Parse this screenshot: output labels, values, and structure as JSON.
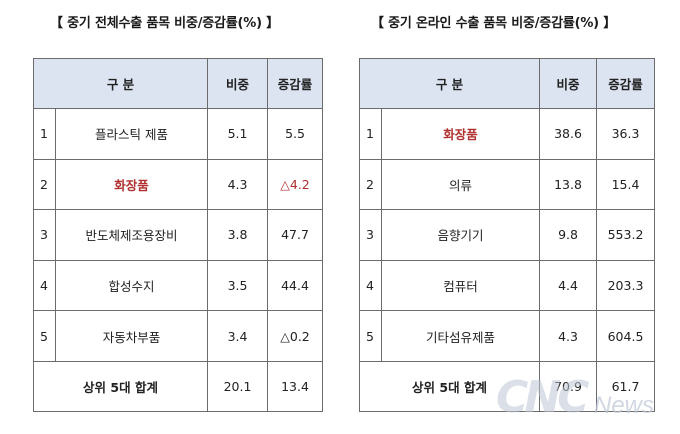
{
  "left": {
    "title": "【 중기 전체수출 품목 비중/증감률(%) 】",
    "headers": [
      "구  분",
      "비중",
      "증감률"
    ],
    "rows": [
      {
        "no": "1",
        "item": "플라스틱 제품",
        "share": "5.1",
        "change": "5.5",
        "highlight_item": false,
        "highlight_change": false
      },
      {
        "no": "2",
        "item": "화장품",
        "share": "4.3",
        "change": "△4.2",
        "highlight_item": true,
        "highlight_change": true
      },
      {
        "no": "3",
        "item": "반도체제조용장비",
        "share": "3.8",
        "change": "47.7",
        "highlight_item": false,
        "highlight_change": false
      },
      {
        "no": "4",
        "item": "합성수지",
        "share": "3.5",
        "change": "44.4",
        "highlight_item": false,
        "highlight_change": false
      },
      {
        "no": "5",
        "item": "자동차부품",
        "share": "3.4",
        "change": "△0.2",
        "highlight_item": false,
        "highlight_change": false
      }
    ],
    "total": {
      "label": "상위 5대 합계",
      "share": "20.1",
      "change": "13.4"
    }
  },
  "right": {
    "title": "【 중기 온라인 수출 품목 비중/증감률(%) 】",
    "headers": [
      "구  분",
      "비중",
      "증감률"
    ],
    "rows": [
      {
        "no": "1",
        "item": "화장품",
        "share": "38.6",
        "change": "36.3",
        "highlight_item": true,
        "highlight_change": false
      },
      {
        "no": "2",
        "item": "의류",
        "share": "13.8",
        "change": "15.4",
        "highlight_item": false,
        "highlight_change": false
      },
      {
        "no": "3",
        "item": "음향기기",
        "share": "9.8",
        "change": "553.2",
        "highlight_item": false,
        "highlight_change": false
      },
      {
        "no": "4",
        "item": "컴퓨터",
        "share": "4.4",
        "change": "203.3",
        "highlight_item": false,
        "highlight_change": false
      },
      {
        "no": "5",
        "item": "기타섬유제품",
        "share": "4.3",
        "change": "604.5",
        "highlight_item": false,
        "highlight_change": false
      }
    ],
    "total": {
      "label": "상위 5대 합계",
      "share": "70.9",
      "change": "61.7"
    }
  },
  "watermark": {
    "big": "CNC",
    "small": "News"
  },
  "colors": {
    "header_bg": "#dce4f2",
    "highlight_text": "#b03030",
    "border": "#6b6b6b"
  }
}
